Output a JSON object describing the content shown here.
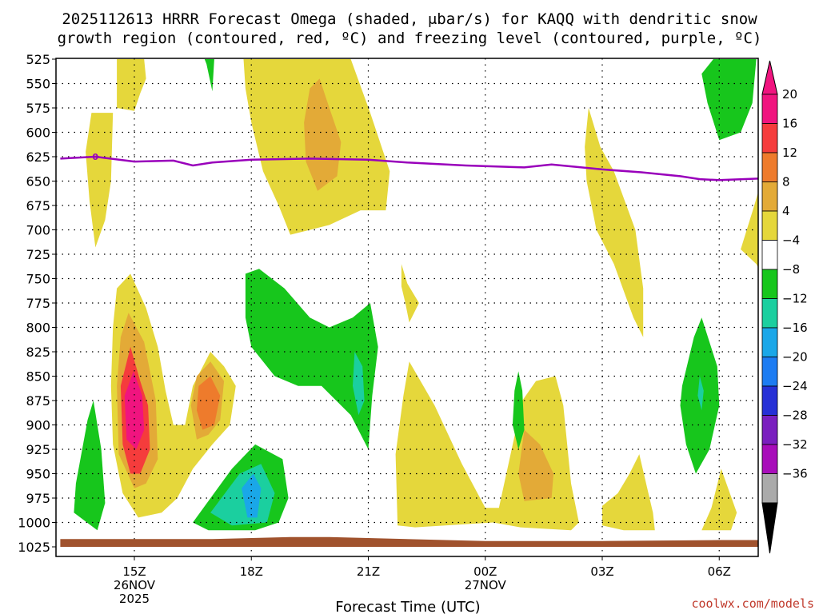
{
  "chart_data": {
    "type": "time-height contour",
    "title_line1": "2025112613 HRRR Forecast Omega (shaded, μbar/s) for KAQQ with dendritic snow",
    "title_line2": "growth region (contoured, red, ºC) and freezing level (contoured, purple, ºC)",
    "xlabel": "Forecast Time (UTC)",
    "credit": "coolwx.com/models",
    "pressure_levels": [
      525,
      550,
      575,
      600,
      625,
      650,
      675,
      700,
      725,
      750,
      775,
      800,
      825,
      850,
      875,
      900,
      925,
      950,
      975,
      1000,
      1025
    ],
    "xlim": [
      -1.9,
      16.3
    ],
    "x_ticks": [
      {
        "t": 0,
        "lines": [
          "15Z",
          "26NOV",
          "2025"
        ]
      },
      {
        "t": 3,
        "lines": [
          "18Z"
        ]
      },
      {
        "t": 6,
        "lines": [
          "21Z"
        ]
      },
      {
        "t": 9,
        "lines": [
          "00Z",
          "27NOV"
        ]
      },
      {
        "t": 12,
        "lines": [
          "03Z"
        ]
      },
      {
        "t": 15,
        "lines": [
          "06Z"
        ]
      }
    ],
    "colorbar": {
      "labels": [
        "20",
        "16",
        "12",
        "8",
        "4",
        "−4",
        "−8",
        "−12",
        "−16",
        "−20",
        "−24",
        "−28",
        "−32",
        "−36"
      ],
      "colors": [
        "#f0147f",
        "#f53c3c",
        "#ee7b2c",
        "#e3aa37",
        "#e5d73b",
        "#ffffff",
        "#17c61c",
        "#1bcf9f",
        "#1aa7e8",
        "#1d7cf2",
        "#2630d6",
        "#7a1fbf",
        "#a80dba",
        "#aaaaaa"
      ],
      "over_color": "#f0147f",
      "under_color": "#000000"
    },
    "freezing_level": {
      "label": "0",
      "color": "#9900bb",
      "points": [
        [
          -1.9,
          627
        ],
        [
          -1,
          625
        ],
        [
          0,
          630
        ],
        [
          1,
          629
        ],
        [
          1.5,
          634
        ],
        [
          2,
          631
        ],
        [
          3,
          628
        ],
        [
          4.5,
          627
        ],
        [
          6,
          628
        ],
        [
          7,
          631
        ],
        [
          8.5,
          634
        ],
        [
          10,
          636
        ],
        [
          10.7,
          633
        ],
        [
          12,
          638
        ],
        [
          13,
          641
        ],
        [
          14,
          645
        ],
        [
          14.5,
          648
        ],
        [
          15,
          649
        ],
        [
          16.3,
          647
        ]
      ]
    },
    "terrain": {
      "color": "#a0522d",
      "points": [
        [
          -1.9,
          1025
        ],
        [
          -1.9,
          1017
        ],
        [
          2,
          1017
        ],
        [
          3,
          1016
        ],
        [
          4,
          1015
        ],
        [
          5,
          1015
        ],
        [
          6,
          1016
        ],
        [
          9,
          1019
        ],
        [
          12,
          1019
        ],
        [
          15,
          1018
        ],
        [
          16.3,
          1018
        ],
        [
          16.3,
          1025
        ]
      ]
    },
    "omega_regions": [
      {
        "color": "#e5d73b",
        "points": [
          [
            -0.45,
            525
          ],
          [
            0.25,
            525
          ],
          [
            0.3,
            545
          ],
          [
            0.15,
            560
          ],
          [
            0,
            578
          ],
          [
            -0.45,
            575
          ]
        ]
      },
      {
        "color": "#e5d73b",
        "points": [
          [
            -1.1,
            580
          ],
          [
            -0.55,
            580
          ],
          [
            -0.6,
            650
          ],
          [
            -0.75,
            690
          ],
          [
            -1.0,
            718
          ],
          [
            -1.15,
            670
          ],
          [
            -1.25,
            620
          ]
        ]
      },
      {
        "color": "#e5d73b",
        "points": [
          [
            2.8,
            525
          ],
          [
            5.55,
            525
          ],
          [
            6.05,
            580
          ],
          [
            6.55,
            640
          ],
          [
            6.45,
            680
          ],
          [
            5.8,
            680
          ],
          [
            5.0,
            695
          ],
          [
            4.0,
            705
          ],
          [
            3.7,
            675
          ],
          [
            3.3,
            640
          ],
          [
            3.0,
            590
          ],
          [
            2.85,
            555
          ]
        ]
      },
      {
        "color": "#e3aa37",
        "points": [
          [
            4.75,
            545
          ],
          [
            5.0,
            575
          ],
          [
            5.3,
            610
          ],
          [
            5.2,
            645
          ],
          [
            4.7,
            660
          ],
          [
            4.4,
            630
          ],
          [
            4.35,
            590
          ],
          [
            4.5,
            555
          ]
        ]
      },
      {
        "color": "#e5d73b",
        "points": [
          [
            -0.45,
            760
          ],
          [
            -0.1,
            745
          ],
          [
            0.3,
            780
          ],
          [
            0.6,
            820
          ],
          [
            0.8,
            865
          ],
          [
            1.0,
            900
          ],
          [
            1.3,
            900
          ],
          [
            1.5,
            860
          ],
          [
            1.95,
            825
          ],
          [
            2.3,
            840
          ],
          [
            2.6,
            860
          ],
          [
            2.45,
            900
          ],
          [
            2.0,
            920
          ],
          [
            1.5,
            945
          ],
          [
            1.1,
            975
          ],
          [
            0.7,
            990
          ],
          [
            0.1,
            995
          ],
          [
            -0.3,
            970
          ],
          [
            -0.55,
            920
          ],
          [
            -0.6,
            860
          ],
          [
            -0.55,
            800
          ]
        ]
      },
      {
        "color": "#e3aa37",
        "points": [
          [
            -0.15,
            785
          ],
          [
            0.25,
            815
          ],
          [
            0.55,
            875
          ],
          [
            0.6,
            935
          ],
          [
            0.3,
            960
          ],
          [
            0.0,
            965
          ],
          [
            -0.4,
            930
          ],
          [
            -0.45,
            860
          ],
          [
            -0.35,
            810
          ]
        ]
      },
      {
        "color": "#e3aa37",
        "points": [
          [
            1.6,
            850
          ],
          [
            1.95,
            835
          ],
          [
            2.3,
            855
          ],
          [
            2.2,
            895
          ],
          [
            1.9,
            910
          ],
          [
            1.6,
            915
          ],
          [
            1.45,
            880
          ]
        ]
      },
      {
        "color": "#ee7b2c",
        "points": [
          [
            1.65,
            860
          ],
          [
            1.95,
            850
          ],
          [
            2.2,
            870
          ],
          [
            2.05,
            900
          ],
          [
            1.75,
            905
          ],
          [
            1.6,
            885
          ]
        ]
      },
      {
        "color": "#f53c3c",
        "points": [
          [
            -0.1,
            820
          ],
          [
            0.15,
            855
          ],
          [
            0.35,
            880
          ],
          [
            0.4,
            925
          ],
          [
            0.15,
            950
          ],
          [
            -0.1,
            950
          ],
          [
            -0.3,
            920
          ],
          [
            -0.35,
            860
          ]
        ]
      },
      {
        "color": "#f0147f",
        "points": [
          [
            -0.02,
            845
          ],
          [
            0.2,
            870
          ],
          [
            0.25,
            905
          ],
          [
            0.05,
            925
          ],
          [
            -0.2,
            915
          ],
          [
            -0.25,
            870
          ]
        ]
      },
      {
        "color": "#e5d73b",
        "points": [
          [
            6.85,
            735
          ],
          [
            7.0,
            755
          ],
          [
            7.3,
            775
          ],
          [
            7.05,
            795
          ],
          [
            6.95,
            775
          ],
          [
            6.85,
            758
          ]
        ]
      },
      {
        "color": "#e5d73b",
        "points": [
          [
            7.05,
            835
          ],
          [
            7.7,
            880
          ],
          [
            8.4,
            940
          ],
          [
            9.0,
            985
          ],
          [
            9.35,
            985
          ],
          [
            9.65,
            930
          ],
          [
            9.95,
            875
          ],
          [
            10.3,
            855
          ],
          [
            10.8,
            850
          ],
          [
            11.0,
            880
          ],
          [
            11.2,
            960
          ],
          [
            11.4,
            1000
          ],
          [
            11.2,
            1008
          ],
          [
            9.9,
            1005
          ],
          [
            9.2,
            1000
          ],
          [
            7.2,
            1005
          ],
          [
            6.75,
            1003
          ],
          [
            6.7,
            930
          ],
          [
            6.9,
            870
          ]
        ]
      },
      {
        "color": "#e3aa37",
        "points": [
          [
            10.0,
            905
          ],
          [
            10.4,
            920
          ],
          [
            10.75,
            950
          ],
          [
            10.7,
            975
          ],
          [
            10.0,
            978
          ],
          [
            9.85,
            950
          ]
        ]
      },
      {
        "color": "#e5d73b",
        "points": [
          [
            11.65,
            575
          ],
          [
            11.95,
            615
          ],
          [
            12.3,
            640
          ],
          [
            12.85,
            700
          ],
          [
            13.05,
            760
          ],
          [
            13.05,
            810
          ],
          [
            12.8,
            790
          ],
          [
            12.3,
            735
          ],
          [
            11.85,
            700
          ],
          [
            11.6,
            650
          ],
          [
            11.55,
            615
          ]
        ]
      },
      {
        "color": "#e5d73b",
        "points": [
          [
            15.9,
            675
          ],
          [
            16.3,
            620
          ],
          [
            16.3,
            760
          ],
          [
            15.95,
            735
          ],
          [
            15.55,
            720
          ]
        ]
      },
      {
        "color": "#e5d73b",
        "points": [
          [
            12.0,
            983
          ],
          [
            12.4,
            970
          ],
          [
            12.7,
            950
          ],
          [
            12.95,
            930
          ],
          [
            13.3,
            990
          ],
          [
            13.35,
            1008
          ],
          [
            12.55,
            1008
          ],
          [
            12.0,
            1003
          ]
        ]
      },
      {
        "color": "#e5d73b",
        "points": [
          [
            14.8,
            985
          ],
          [
            15.05,
            945
          ],
          [
            15.45,
            990
          ],
          [
            15.3,
            1008
          ],
          [
            14.55,
            1008
          ]
        ]
      },
      {
        "color": "#17c61c",
        "points": [
          [
            1.8,
            525
          ],
          [
            2.05,
            525
          ],
          [
            2.0,
            558
          ],
          [
            1.85,
            530
          ]
        ]
      },
      {
        "color": "#17c61c",
        "points": [
          [
            14.85,
            525
          ],
          [
            15.95,
            525
          ],
          [
            15.85,
            570
          ],
          [
            15.55,
            600
          ],
          [
            15.0,
            608
          ],
          [
            14.7,
            570
          ],
          [
            14.55,
            540
          ]
        ]
      },
      {
        "color": "#17c61c",
        "points": [
          [
            -1.5,
            960
          ],
          [
            -1.2,
            895
          ],
          [
            -1.05,
            875
          ],
          [
            -0.85,
            925
          ],
          [
            -0.75,
            980
          ],
          [
            -0.95,
            1008
          ],
          [
            -1.55,
            990
          ]
        ]
      },
      {
        "color": "#17c61c",
        "points": [
          [
            2.85,
            745
          ],
          [
            3.2,
            740
          ],
          [
            3.85,
            760
          ],
          [
            4.5,
            790
          ],
          [
            5.0,
            800
          ],
          [
            5.6,
            790
          ],
          [
            6.05,
            775
          ],
          [
            6.25,
            820
          ],
          [
            6.1,
            870
          ],
          [
            6.0,
            925
          ],
          [
            5.55,
            890
          ],
          [
            4.8,
            860
          ],
          [
            4.2,
            860
          ],
          [
            3.6,
            850
          ],
          [
            3.0,
            820
          ],
          [
            2.85,
            790
          ]
        ]
      },
      {
        "color": "#1bcf9f",
        "points": [
          [
            5.65,
            825
          ],
          [
            5.85,
            840
          ],
          [
            5.9,
            875
          ],
          [
            5.75,
            890
          ],
          [
            5.6,
            860
          ]
        ]
      },
      {
        "color": "#17c61c",
        "points": [
          [
            1.5,
            1000
          ],
          [
            2.5,
            945
          ],
          [
            3.1,
            920
          ],
          [
            3.8,
            935
          ],
          [
            3.95,
            975
          ],
          [
            3.7,
            1000
          ],
          [
            3.1,
            1008
          ],
          [
            1.9,
            1008
          ]
        ]
      },
      {
        "color": "#1bcf9f",
        "points": [
          [
            1.95,
            990
          ],
          [
            2.7,
            950
          ],
          [
            3.25,
            940
          ],
          [
            3.6,
            970
          ],
          [
            3.4,
            1000
          ],
          [
            2.5,
            1003
          ]
        ]
      },
      {
        "color": "#1aa7e8",
        "points": [
          [
            2.75,
            965
          ],
          [
            3.05,
            950
          ],
          [
            3.25,
            965
          ],
          [
            3.15,
            995
          ],
          [
            2.9,
            995
          ]
        ]
      },
      {
        "color": "#17c61c",
        "points": [
          [
            14.05,
            860
          ],
          [
            14.35,
            810
          ],
          [
            14.55,
            790
          ],
          [
            14.95,
            840
          ],
          [
            15.0,
            880
          ],
          [
            14.75,
            925
          ],
          [
            14.4,
            950
          ],
          [
            14.15,
            920
          ],
          [
            14.0,
            880
          ]
        ]
      },
      {
        "color": "#1bcf9f",
        "points": [
          [
            14.5,
            850
          ],
          [
            14.6,
            865
          ],
          [
            14.55,
            885
          ],
          [
            14.45,
            870
          ]
        ]
      },
      {
        "color": "#17c61c",
        "points": [
          [
            9.85,
            845
          ],
          [
            9.95,
            865
          ],
          [
            10.0,
            905
          ],
          [
            9.85,
            925
          ],
          [
            9.7,
            900
          ],
          [
            9.75,
            865
          ]
        ]
      }
    ]
  }
}
